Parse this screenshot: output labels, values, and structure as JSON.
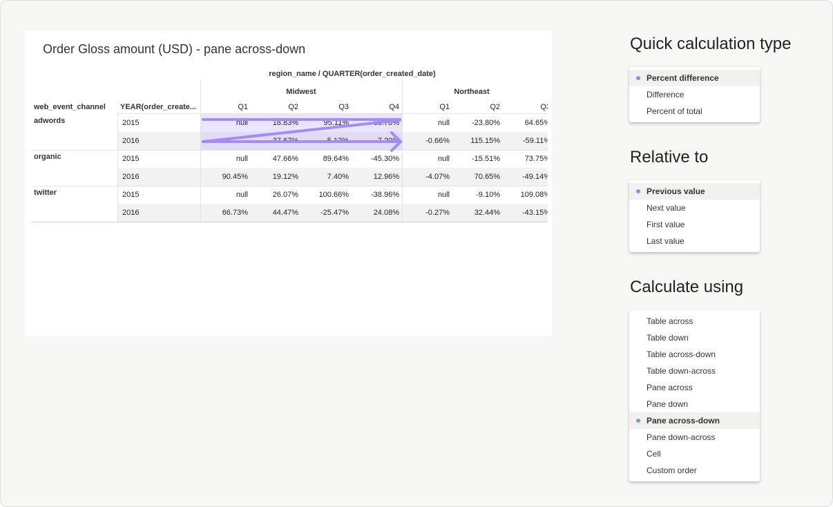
{
  "chart_title": "Order Gloss amount (USD) - pane across-down",
  "table": {
    "column_dim": "region_name / QUARTER(order_created_date)",
    "row_headers": [
      "web_event_channel",
      "YEAR(order_create..."
    ],
    "regions": [
      "Midwest",
      "Northeast"
    ],
    "quarters": [
      "Q1",
      "Q2",
      "Q3",
      "Q4",
      "Q1",
      "Q2",
      "Q3"
    ],
    "rows": [
      {
        "channel": "adwords",
        "year": "2015",
        "values": [
          "null",
          "18.83%",
          "95.11%",
          "65.78%",
          "null",
          "-23.80%",
          "64.65%"
        ]
      },
      {
        "channel": "",
        "year": "2016",
        "values": [
          "",
          "37.67%",
          "5.12%",
          "7.20%",
          "-0.66%",
          "115.15%",
          "-59.11%"
        ]
      },
      {
        "channel": "organic",
        "year": "2015",
        "values": [
          "null",
          "47.66%",
          "89.64%",
          "-45.30%",
          "null",
          "-15.51%",
          "73.75%"
        ]
      },
      {
        "channel": "",
        "year": "2016",
        "values": [
          "90.45%",
          "19.12%",
          "7.40%",
          "12.96%",
          "-4.07%",
          "70.65%",
          "-49.14%"
        ]
      },
      {
        "channel": "twitter",
        "year": "2015",
        "values": [
          "null",
          "26.07%",
          "100.66%",
          "-38.96%",
          "null",
          "-9.10%",
          "109.08%"
        ]
      },
      {
        "channel": "",
        "year": "2016",
        "values": [
          "66.73%",
          "44.47%",
          "-25.47%",
          "24.08%",
          "-0.27%",
          "32.44%",
          "-43.15%"
        ]
      }
    ]
  },
  "arrow_color": "#a58bf7",
  "quick_calc": {
    "heading": "Quick calculation type",
    "items": [
      "Percent difference",
      "Difference",
      "Percent of total"
    ],
    "selected": 0
  },
  "relative_to": {
    "heading": "Relative to",
    "items": [
      "Previous value",
      "Next value",
      "First value",
      "Last value"
    ],
    "selected": 0
  },
  "calculate_using": {
    "heading": "Calculate using",
    "items": [
      "Table across",
      "Table down",
      "Table across-down",
      "Table down-across",
      "Pane across",
      "Pane down",
      "Pane across-down",
      "Pane down-across",
      "Cell",
      "Custom order"
    ],
    "selected": 6
  }
}
